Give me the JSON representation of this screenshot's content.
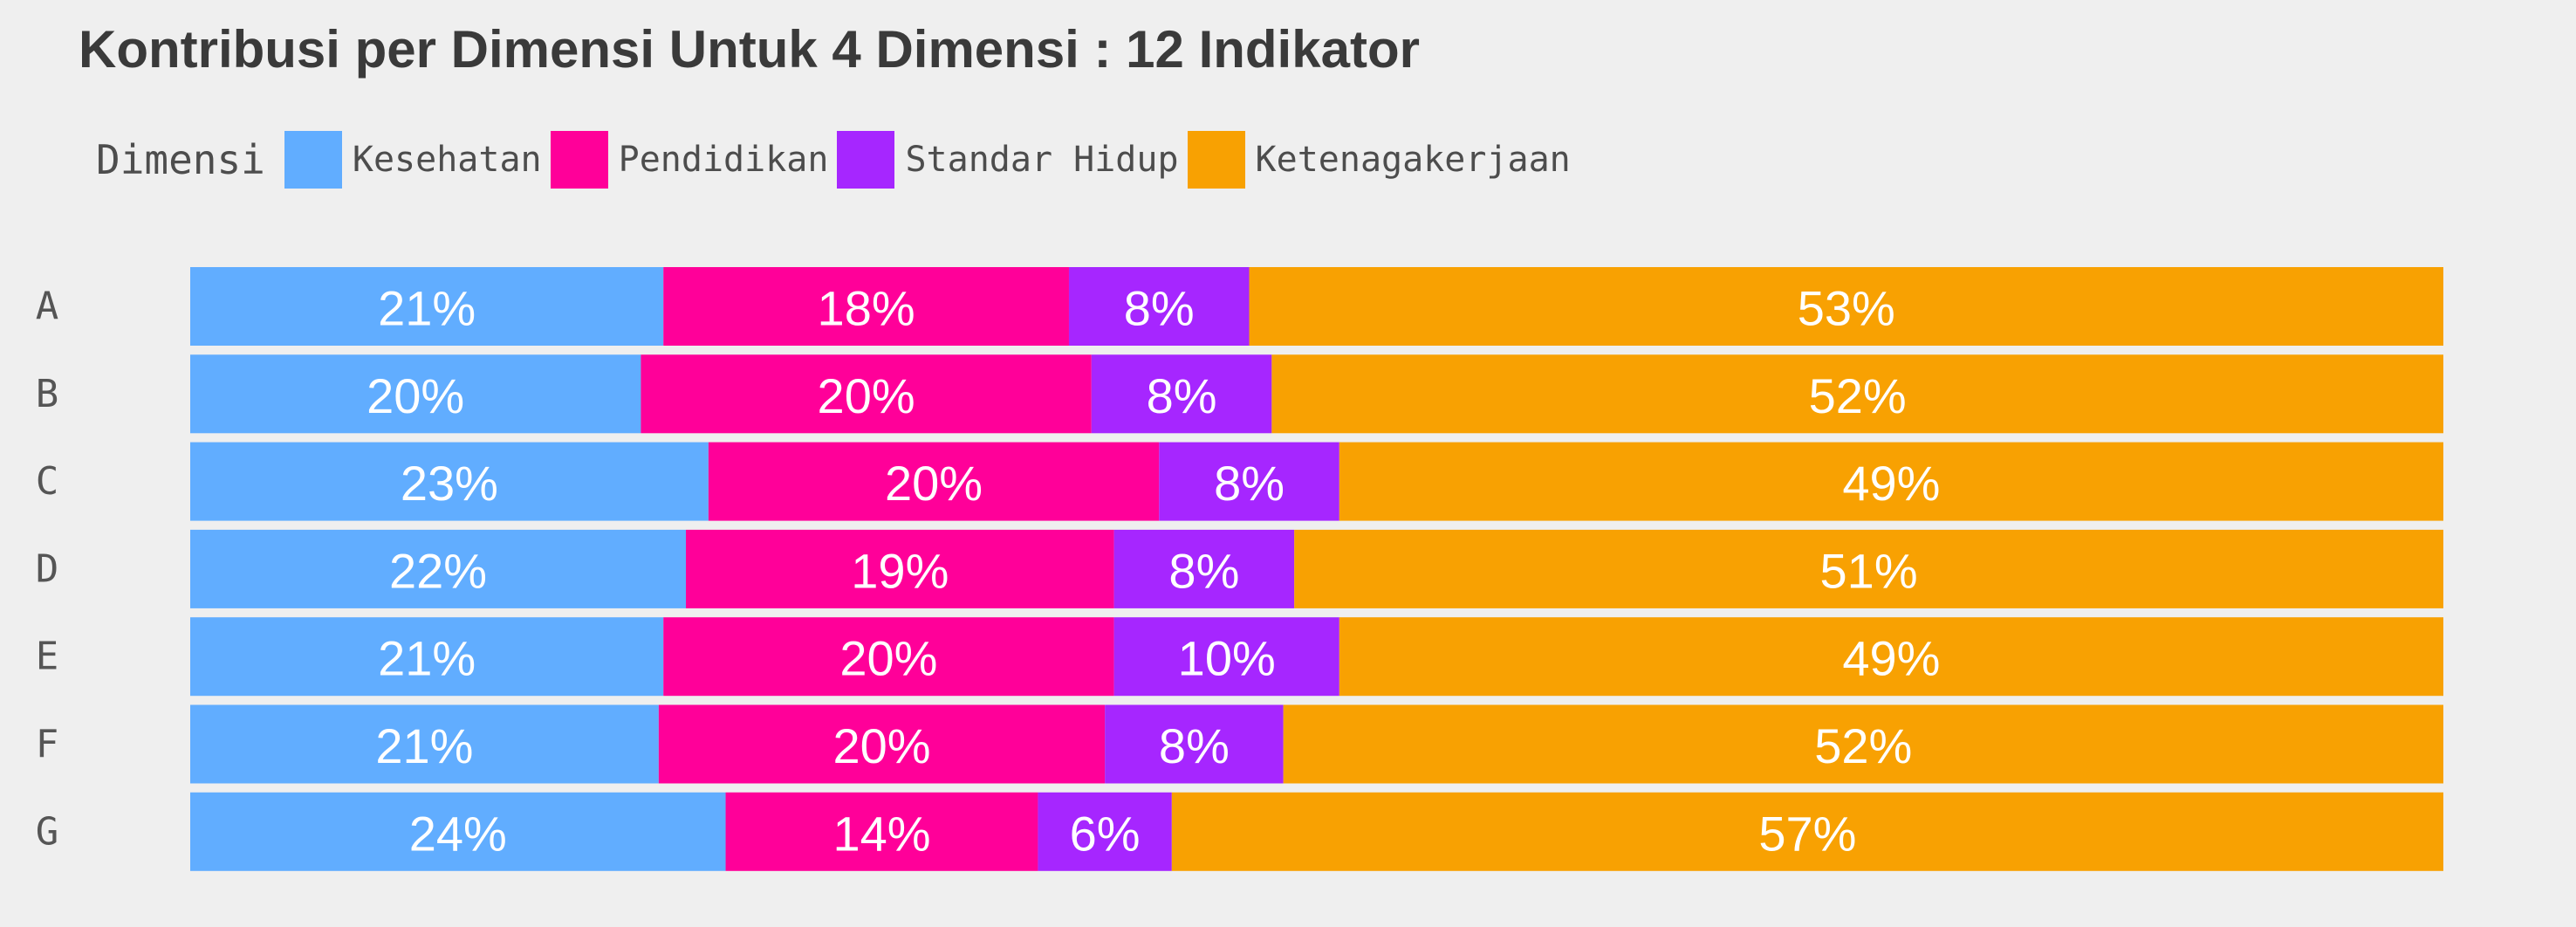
{
  "title": "Kontribusi per Dimensi Untuk 4 Dimensi : 12 Indikator",
  "chart_data": {
    "type": "bar",
    "orientation": "horizontal",
    "stacked": "percent",
    "title": "Kontribusi per Dimensi Untuk 4 Dimensi : 12 Indikator",
    "legend_title": "Dimensi",
    "legend_position": "top-left",
    "categories": [
      "A",
      "B",
      "C",
      "D",
      "E",
      "F",
      "G"
    ],
    "series": [
      {
        "name": "Kesehatan",
        "color": "#61adff",
        "values": [
          21,
          20,
          23,
          22,
          21,
          21,
          24
        ]
      },
      {
        "name": "Pendidikan",
        "color": "#ff0099",
        "values": [
          18,
          20,
          20,
          19,
          20,
          20,
          14
        ]
      },
      {
        "name": "Standar Hidup",
        "color": "#a626ff",
        "values": [
          8,
          8,
          8,
          8,
          10,
          8,
          6
        ]
      },
      {
        "name": "Ketenagakerjaan",
        "color": "#f8a102",
        "values": [
          53,
          52,
          49,
          51,
          49,
          52,
          57
        ]
      }
    ],
    "labels": [
      [
        "21%",
        "18%",
        "8%",
        "53%"
      ],
      [
        "20%",
        "20%",
        "8%",
        "52%"
      ],
      [
        "23%",
        "20%",
        "8%",
        "49%"
      ],
      [
        "22%",
        "19%",
        "8%",
        "51%"
      ],
      [
        "21%",
        "20%",
        "10%",
        "49%"
      ],
      [
        "21%",
        "20%",
        "8%",
        "52%"
      ],
      [
        "24%",
        "14%",
        "6%",
        "57%"
      ]
    ],
    "xlim": [
      0,
      100
    ],
    "grid": false
  }
}
